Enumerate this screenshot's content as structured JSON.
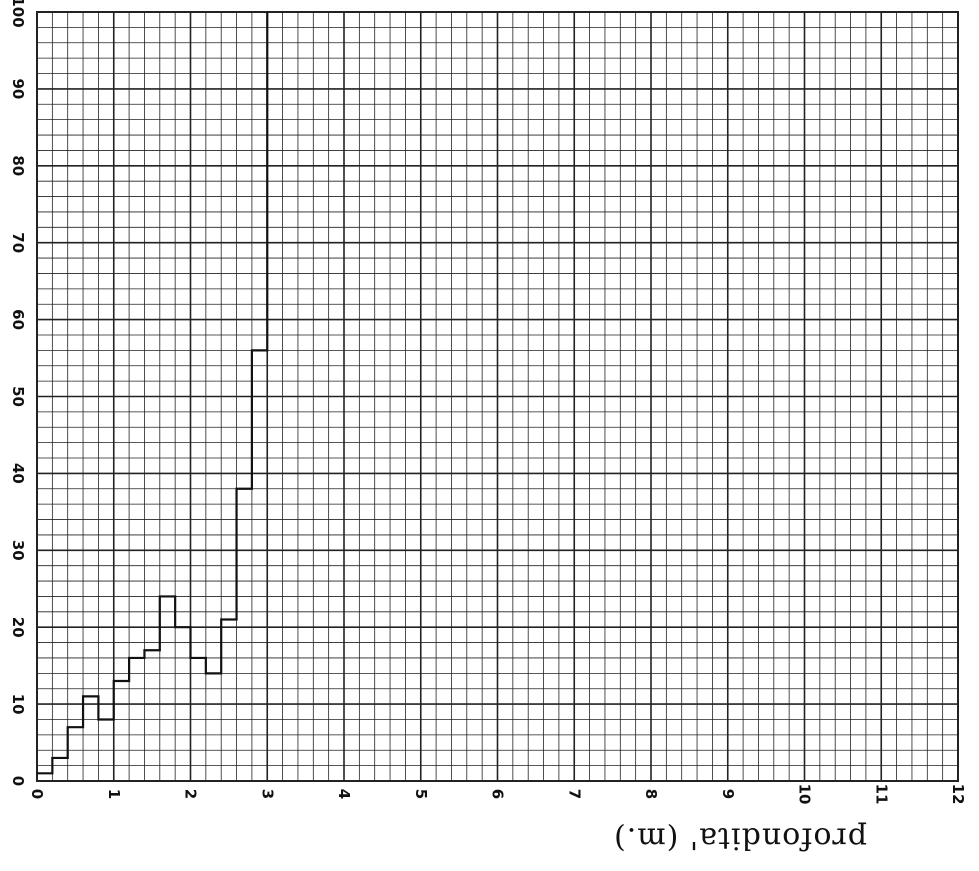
{
  "chart_data": {
    "type": "line",
    "step": true,
    "xlabel": "profondita' (m.)",
    "ylabel": "",
    "title": "",
    "xlim": [
      0,
      12
    ],
    "ylim": [
      0,
      100
    ],
    "x_ticks": [
      "0",
      "1",
      "2",
      "3",
      "4",
      "5",
      "6",
      "7",
      "8",
      "9",
      "10",
      "11",
      "12"
    ],
    "y_ticks": [
      "0",
      "10",
      "20",
      "30",
      "40",
      "50",
      "60",
      "70",
      "80",
      "90",
      "100"
    ],
    "grid": true,
    "orientation": "rotated",
    "series": [
      {
        "x": [
          0,
          0.2,
          0.4,
          0.6,
          0.8,
          1.0,
          1.2,
          1.4,
          1.6,
          1.8,
          2.0,
          2.2,
          2.4,
          2.6,
          2.8,
          3.0
        ],
        "y": [
          1,
          3,
          7,
          11,
          8,
          13,
          16,
          17,
          24,
          20,
          16,
          14,
          21,
          38,
          56,
          100
        ]
      }
    ],
    "colors": {
      "grid": "#222222",
      "series": "#111111"
    }
  }
}
